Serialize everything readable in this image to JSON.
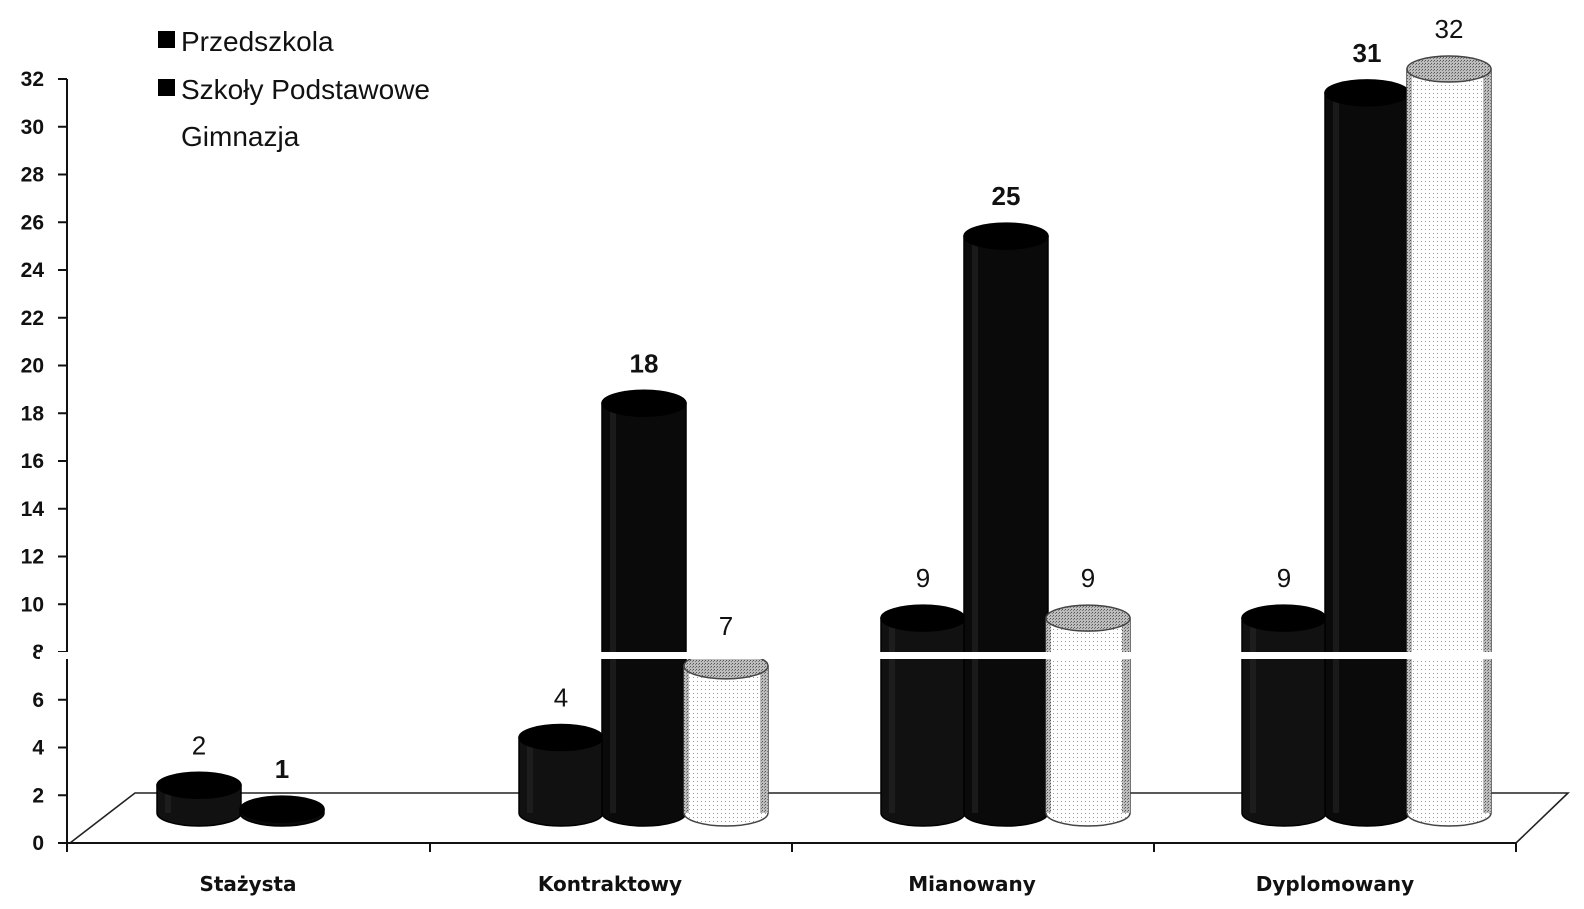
{
  "chart_data": {
    "type": "bar",
    "categories": [
      "Stażysta",
      "Kontraktowy",
      "Mianowany",
      "Dyplomowany"
    ],
    "series": [
      {
        "name": "Przedszkola",
        "values": [
          2,
          4,
          9,
          9
        ],
        "color": "#111111",
        "bold_labels": false
      },
      {
        "name": "Szkoły Podstawowe",
        "values": [
          1,
          18,
          25,
          31
        ],
        "color": "#0a0a0a",
        "bold_labels": true
      },
      {
        "name": "Gimnazja",
        "values": [
          null,
          7,
          9,
          32
        ],
        "color": "#ffffff",
        "bold_labels": false
      }
    ],
    "data_labels": [
      [
        "2",
        "4",
        "9",
        "9"
      ],
      [
        "1",
        "18",
        "25",
        "31"
      ],
      [
        "",
        "7",
        "9",
        "32"
      ]
    ],
    "y_ticks": [
      "0",
      "2",
      "4",
      "6",
      "8",
      "10",
      "12",
      "14",
      "16",
      "18",
      "20",
      "22",
      "24",
      "26",
      "28",
      "30",
      "32"
    ],
    "ylim": [
      0,
      32
    ],
    "legend_position": "top-left",
    "grid": false,
    "style": "3d-cylinder"
  }
}
